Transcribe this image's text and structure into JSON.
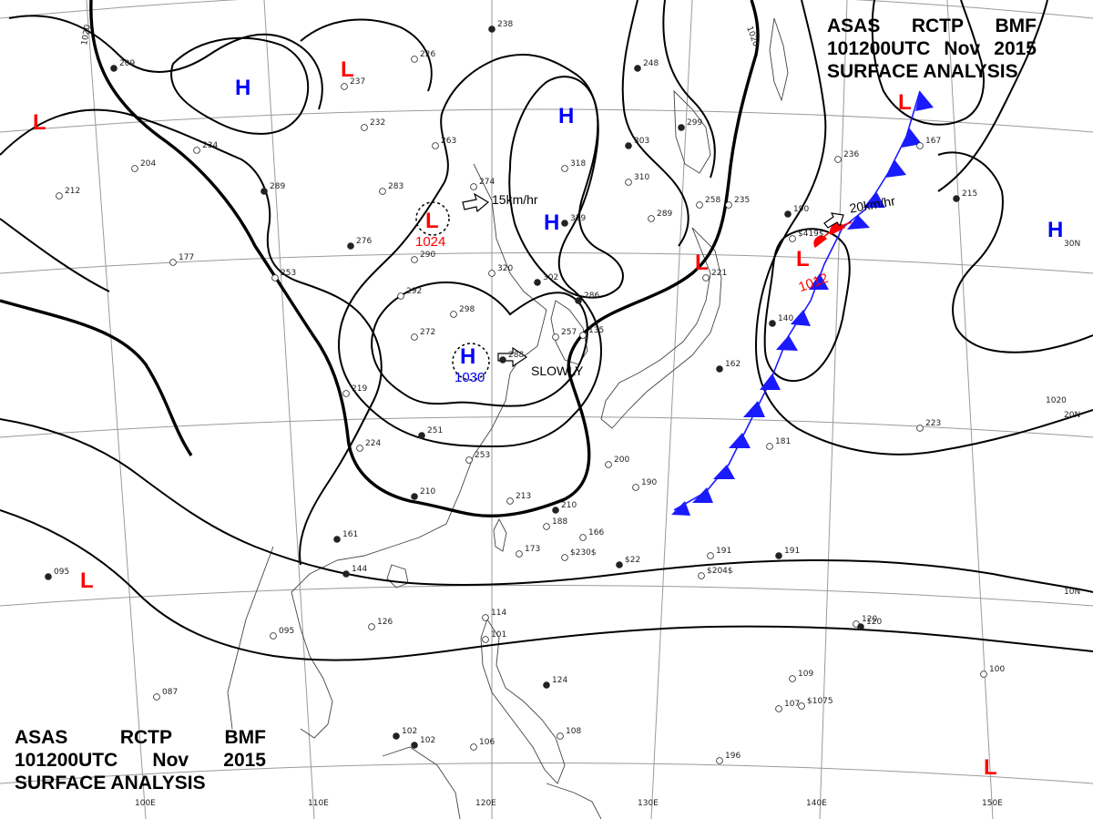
{
  "header_top": {
    "line1": [
      "ASAS",
      "RCTP",
      "BMF"
    ],
    "line2": [
      "101200UTC",
      "Nov",
      "2015"
    ],
    "line3": "SURFACE ANALYSIS"
  },
  "header_bottom": {
    "line1": [
      "ASAS",
      "RCTP",
      "BMF"
    ],
    "line2": [
      "101200UTC",
      "Nov",
      "2015"
    ],
    "line3": "SURFACE ANALYSIS"
  },
  "colors": {
    "low": "#ff0000",
    "high": "#0000ff",
    "front_cold": "#1a1aff",
    "front_warm": "#ff0000",
    "isobar": "#000000"
  },
  "longitude_labels": [
    "100E",
    "110E",
    "120E",
    "130E",
    "140E",
    "150E"
  ],
  "latitude_labels": [
    "30N",
    "20N",
    "10N"
  ],
  "isobar_labels": [
    "1020",
    "1020",
    "1020"
  ],
  "pressure_centers": {
    "low_red": [
      "L",
      "L",
      "L",
      "L",
      "L",
      "L"
    ],
    "high_blue": [
      "H",
      "H",
      "H",
      "H",
      "H"
    ],
    "low_main": {
      "symbol": "L",
      "value": "1024"
    },
    "low_front": {
      "symbol": "L",
      "value": "1012"
    },
    "high_main": {
      "symbol": "H",
      "value": "1030"
    }
  },
  "motion_labels": {
    "low_main": "15km/hr",
    "high_main": "SLOWLY",
    "low_front": "20km/hr"
  },
  "station_values": [
    "238",
    "226",
    "237",
    "209",
    "232",
    "263",
    "248",
    "234",
    "204",
    "289",
    "283",
    "274",
    "303",
    "318",
    "310",
    "299",
    "258",
    "212",
    "276",
    "290",
    "320",
    "302",
    "292",
    "298",
    "286",
    "257",
    "272",
    "288",
    "253",
    "219",
    "251",
    "224",
    "253",
    "210",
    "213",
    "188",
    "161",
    "173",
    "166",
    "144",
    "126",
    "095",
    "095",
    "114",
    "101",
    "124",
    "106",
    "108",
    "102",
    "087",
    "120",
    "102",
    "200",
    "190",
    "162",
    "177",
    "221",
    "140",
    "181",
    "191",
    "191",
    "107",
    "109",
    "120",
    "100",
    "196",
    "215",
    "167",
    "235",
    "190",
    "236",
    "289",
    "329",
    "135",
    "223",
    "210",
    "$230$",
    "$204$",
    "$22",
    "$1075",
    "$419$"
  ]
}
